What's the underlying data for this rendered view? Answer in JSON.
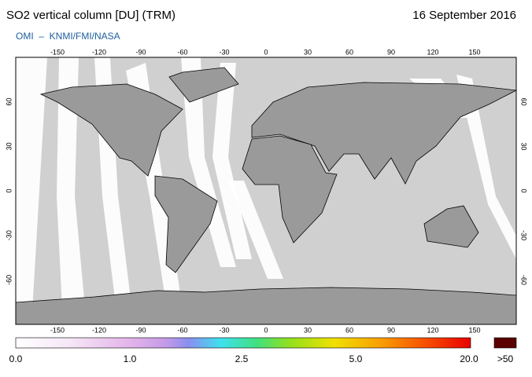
{
  "header": {
    "title": "SO2 vertical column [DU] (TRM)",
    "date": "16 September 2016",
    "source": "OMI  –  KNMI/FMI/NASA"
  },
  "map": {
    "lon_ticks": [
      -150,
      -120,
      -90,
      -60,
      -30,
      0,
      30,
      60,
      90,
      120,
      150
    ],
    "lat_ticks": [
      60,
      30,
      0,
      -30,
      -60
    ]
  },
  "colorbar": {
    "labels": [
      "0.0",
      "1.0",
      "2.5",
      "5.0",
      "20.0"
    ],
    "overflow_label": ">50"
  }
}
